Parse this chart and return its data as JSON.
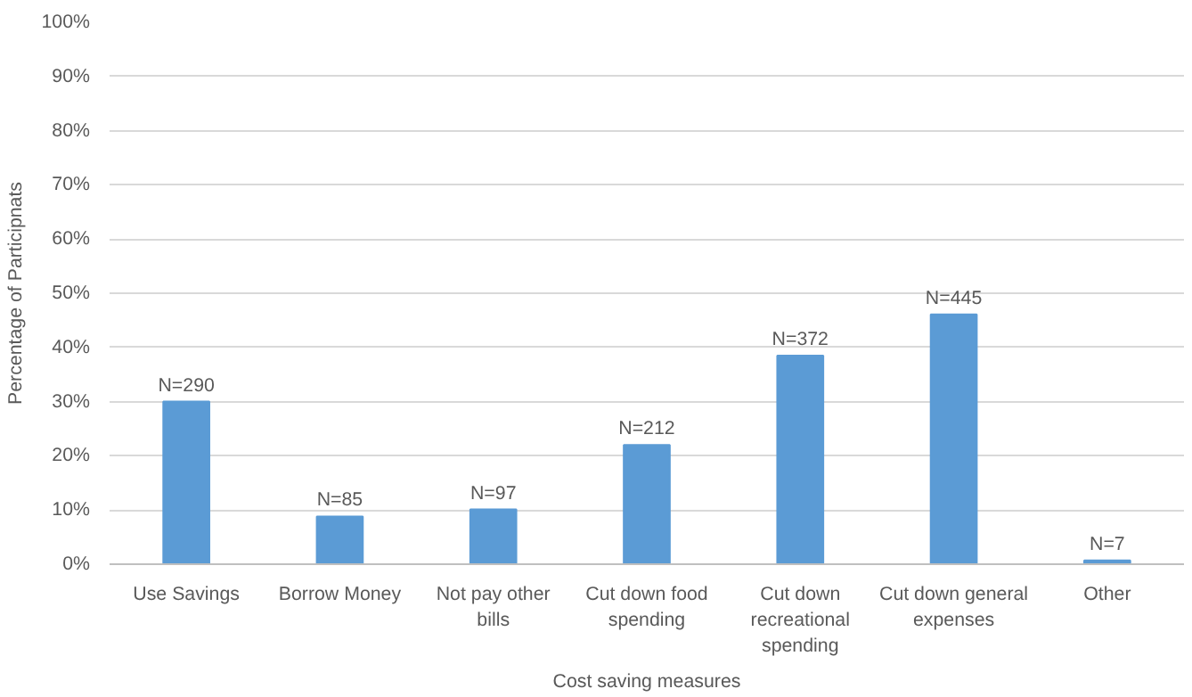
{
  "chart_data": {
    "type": "bar",
    "xlabel": "Cost saving measures",
    "ylabel": "Percentage of Participnats",
    "categories": [
      "Use Savings",
      "Borrow Money",
      "Not pay other bills",
      "Cut down food spending",
      "Cut down recreational spending",
      "Cut down general expenses",
      "Other"
    ],
    "values": [
      30.0,
      8.8,
      10.1,
      22.0,
      38.5,
      46.1,
      0.7
    ],
    "annotations": [
      {
        "text": "N=290",
        "x": "Use Savings",
        "y": 30.0
      },
      {
        "text": "N=85",
        "x": "Borrow Money",
        "y": 8.8
      },
      {
        "text": "N=97",
        "x": "Not pay other bills",
        "y": 10.1
      },
      {
        "text": "N=212",
        "x": "Cut down food spending",
        "y": 22.0
      },
      {
        "text": "N=372",
        "x": "Cut down recreational spending",
        "y": 38.5
      },
      {
        "text": "N=445",
        "x": "Cut down general expenses",
        "y": 46.1
      },
      {
        "text": "N=7",
        "x": "Other",
        "y": 0.7
      }
    ],
    "color": "#5b9bd5",
    "ylim": [
      0,
      100
    ],
    "yticks": [
      {
        "value": 0,
        "label": "0%"
      },
      {
        "value": 10,
        "label": "10%"
      },
      {
        "value": 20,
        "label": "20%"
      },
      {
        "value": 30,
        "label": "30%"
      },
      {
        "value": 40,
        "label": "40%"
      },
      {
        "value": 50,
        "label": "50%"
      },
      {
        "value": 60,
        "label": "60%"
      },
      {
        "value": 70,
        "label": "70%"
      },
      {
        "value": 80,
        "label": "80%"
      },
      {
        "value": 90,
        "label": "90%"
      },
      {
        "value": 100,
        "label": "100%"
      }
    ],
    "grid": "y"
  }
}
